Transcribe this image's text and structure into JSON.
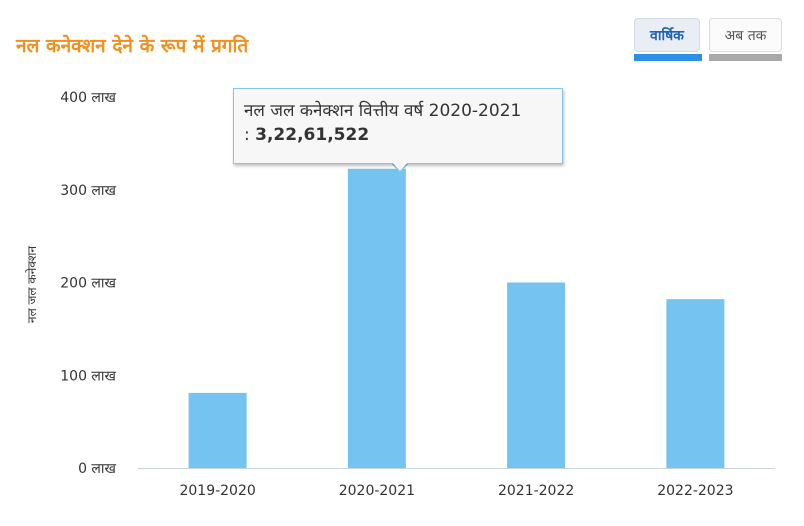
{
  "header": {
    "title": "नल कनेक्शन देने के रूप में प्रगति"
  },
  "tabs": [
    {
      "label": "वार्षिक",
      "active": true
    },
    {
      "label": "अब तक",
      "active": false
    }
  ],
  "tooltip": {
    "label": "नल जल कनेक्शन वित्तीय वर्ष 2020-2021",
    "prefix": ":",
    "value": "3,22,61,522"
  },
  "colors": {
    "bar": "#74c3f0",
    "title": "#f0901e",
    "active_tab_underline": "#2d8fe6",
    "inactive_tab_underline": "#a9a9a9"
  },
  "chart_data": {
    "type": "bar",
    "ylabel": "नल जल कनेक्शन",
    "categories": [
      "2019-2020",
      "2020-2021",
      "2021-2022",
      "2022-2023"
    ],
    "values": [
      81,
      322.61522,
      200,
      182
    ],
    "ylim": [
      0,
      400
    ],
    "yticks": [
      {
        "value": 0,
        "label": "0 लाख"
      },
      {
        "value": 100,
        "label": "100 लाख"
      },
      {
        "value": 200,
        "label": "200 लाख"
      },
      {
        "value": 300,
        "label": "300 लाख"
      },
      {
        "value": 400,
        "label": "400 लाख"
      }
    ],
    "grid": false,
    "legend": "none"
  }
}
